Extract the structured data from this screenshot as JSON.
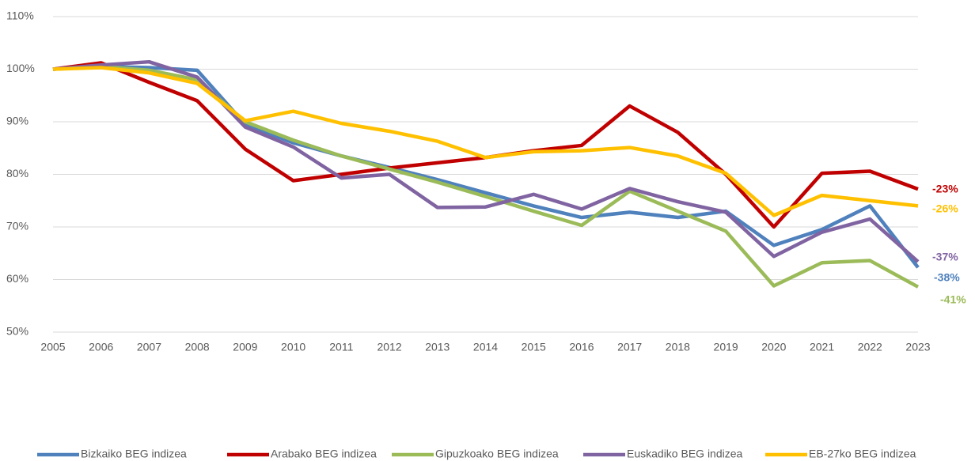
{
  "chart_data": {
    "type": "line",
    "categories": [
      "2005",
      "2006",
      "2007",
      "2008",
      "2009",
      "2010",
      "2011",
      "2012",
      "2013",
      "2014",
      "2015",
      "2016",
      "2017",
      "2018",
      "2019",
      "2020",
      "2021",
      "2022",
      "2023"
    ],
    "series": [
      {
        "name": "Bizkaiko BEG indizea",
        "color": "#4f81bd",
        "end_label": "-38%",
        "values": [
          100,
          100.5,
          100.3,
          99.8,
          89.5,
          86,
          83.5,
          81.3,
          79,
          76.5,
          74,
          71.8,
          72.8,
          71.8,
          73,
          66.5,
          69.5,
          74,
          62.3
        ]
      },
      {
        "name": "Arabako BEG indizea",
        "color": "#c00000",
        "end_label": "-23%",
        "values": [
          100,
          101.2,
          97.5,
          94,
          84.8,
          78.8,
          80,
          81.2,
          82.2,
          83.2,
          84.5,
          85.5,
          93,
          88,
          80,
          70,
          80.2,
          80.6,
          77.2
        ]
      },
      {
        "name": "Gipuzkoako BEG indizea",
        "color": "#9bbb59",
        "end_label": "-41%",
        "values": [
          100,
          100.5,
          99.8,
          98,
          90,
          86.5,
          83.5,
          81,
          78.5,
          75.8,
          73,
          70.3,
          76.8,
          73,
          69.2,
          58.8,
          63.2,
          63.6,
          58.6
        ]
      },
      {
        "name": "Euskadiko BEG indizea",
        "color": "#8064a2",
        "end_label": "-37%",
        "values": [
          100,
          100.8,
          101.4,
          98.5,
          89,
          85.2,
          79.3,
          80,
          73.7,
          73.8,
          76.2,
          73.4,
          77.3,
          74.8,
          72.8,
          64.4,
          69,
          71.5,
          63.4
        ]
      },
      {
        "name": "EB-27ko BEG indizea",
        "color": "#ffc000",
        "end_label": "-26%",
        "values": [
          100,
          100.3,
          99.3,
          97.3,
          90.2,
          92,
          89.7,
          88.2,
          86.3,
          83.2,
          84.3,
          84.5,
          85.1,
          83.5,
          80.2,
          72.2,
          76,
          75,
          74
        ]
      }
    ],
    "ylim": [
      50,
      110
    ],
    "yticks": [
      {
        "value": 50,
        "label": "50%"
      },
      {
        "value": 60,
        "label": "60%"
      },
      {
        "value": 70,
        "label": "70%"
      },
      {
        "value": 80,
        "label": "80%"
      },
      {
        "value": 90,
        "label": "90%"
      },
      {
        "value": 100,
        "label": "100%"
      },
      {
        "value": 110,
        "label": "110%"
      }
    ],
    "grid": true,
    "legend": "bottom"
  }
}
